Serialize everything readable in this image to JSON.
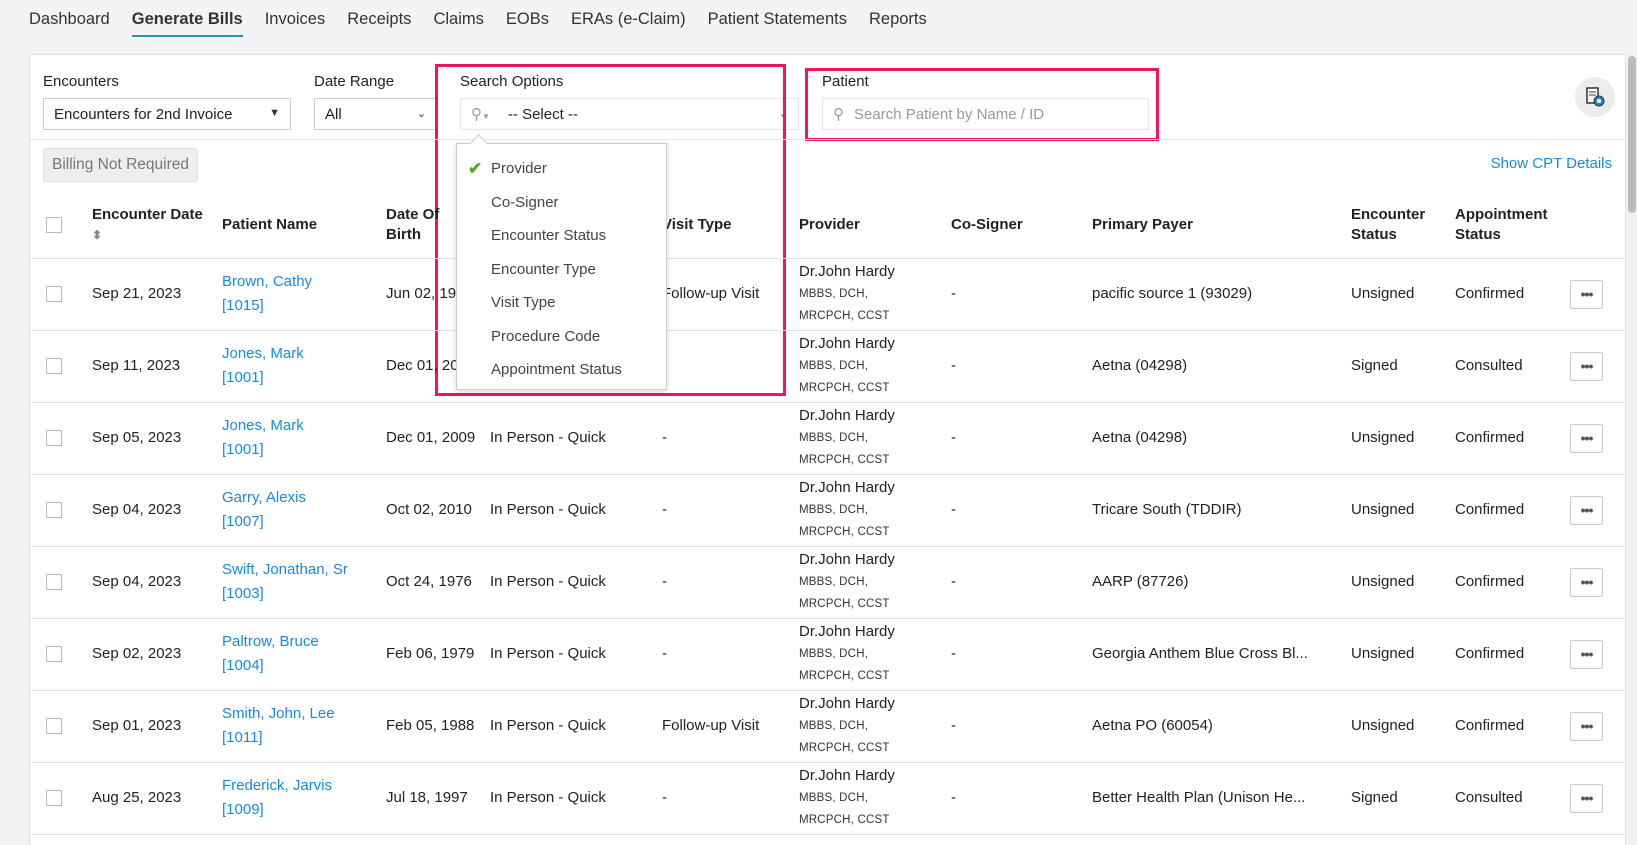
{
  "tabs": [
    "Dashboard",
    "Generate Bills",
    "Invoices",
    "Receipts",
    "Claims",
    "EOBs",
    "ERAs (e-Claim)",
    "Patient Statements",
    "Reports"
  ],
  "active_tab": "Generate Bills",
  "filters": {
    "encounters_label": "Encounters",
    "encounters_value": "Encounters for 2nd Invoice",
    "date_range_label": "Date Range",
    "date_range_value": "All",
    "search_options_label": "Search Options",
    "search_options_value": "-- Select --",
    "patient_label": "Patient",
    "patient_placeholder": "Search Patient by Name / ID"
  },
  "search_options_menu": [
    {
      "label": "Provider",
      "checked": true
    },
    {
      "label": "Co-Signer"
    },
    {
      "label": "Encounter Status"
    },
    {
      "label": "Encounter Type"
    },
    {
      "label": "Visit Type"
    },
    {
      "label": "Procedure Code"
    },
    {
      "label": "Appointment Status"
    }
  ],
  "billing_not_required_label": "Billing Not Required",
  "show_cpt_label": "Show CPT Details",
  "columns": [
    "Encounter Date",
    "Patient Name",
    "Date Of Birth",
    "",
    "Visit Type",
    "Provider",
    "Co-Signer",
    "Primary Payer",
    "Encounter Status",
    "Appointment Status"
  ],
  "rows": [
    {
      "date": "Sep 21, 2023",
      "patient": "Brown, Cathy",
      "id": "[1015]",
      "dob": "Jun 02, 1995",
      "type": "",
      "visit": "Follow-up Visit",
      "provider": "Dr.John Hardy",
      "quals": "MBBS, DCH, MRCPCH, CCST",
      "cosigner": "-",
      "payer": "pacific source 1 (93029)",
      "enc_status": "Unsigned",
      "appt_status": "Confirmed"
    },
    {
      "date": "Sep 11, 2023",
      "patient": "Jones, Mark",
      "id": "[1001]",
      "dob": "Dec 01, 2009",
      "type": "",
      "visit": "-",
      "provider": "Dr.John Hardy",
      "quals": "MBBS, DCH, MRCPCH, CCST",
      "cosigner": "-",
      "payer": "Aetna (04298)",
      "enc_status": "Signed",
      "appt_status": "Consulted"
    },
    {
      "date": "Sep 05, 2023",
      "patient": "Jones, Mark",
      "id": "[1001]",
      "dob": "Dec 01, 2009",
      "type": "In Person - Quick",
      "visit": "-",
      "provider": "Dr.John Hardy",
      "quals": "MBBS, DCH, MRCPCH, CCST",
      "cosigner": "-",
      "payer": "Aetna (04298)",
      "enc_status": "Unsigned",
      "appt_status": "Confirmed"
    },
    {
      "date": "Sep 04, 2023",
      "patient": "Garry, Alexis",
      "id": "[1007]",
      "dob": "Oct 02, 2010",
      "type": "In Person - Quick",
      "visit": "-",
      "provider": "Dr.John Hardy",
      "quals": "MBBS, DCH, MRCPCH, CCST",
      "cosigner": "-",
      "payer": "Tricare South (TDDIR)",
      "enc_status": "Unsigned",
      "appt_status": "Confirmed"
    },
    {
      "date": "Sep 04, 2023",
      "patient": "Swift, Jonathan, Sr",
      "id": "[1003]",
      "dob": "Oct 24, 1976",
      "type": "In Person - Quick",
      "visit": "-",
      "provider": "Dr.John Hardy",
      "quals": "MBBS, DCH, MRCPCH, CCST",
      "cosigner": "-",
      "payer": "AARP (87726)",
      "enc_status": "Unsigned",
      "appt_status": "Confirmed"
    },
    {
      "date": "Sep 02, 2023",
      "patient": "Paltrow, Bruce",
      "id": "[1004]",
      "dob": "Feb 06, 1979",
      "type": "In Person - Quick",
      "visit": "-",
      "provider": "Dr.John Hardy",
      "quals": "MBBS, DCH, MRCPCH, CCST",
      "cosigner": "-",
      "payer": "Georgia Anthem Blue Cross Bl...",
      "enc_status": "Unsigned",
      "appt_status": "Confirmed"
    },
    {
      "date": "Sep 01, 2023",
      "patient": "Smith, John, Lee",
      "id": "[1011]",
      "dob": "Feb 05, 1988",
      "type": "In Person - Quick",
      "visit": "Follow-up Visit",
      "provider": "Dr.John Hardy",
      "quals": "MBBS, DCH, MRCPCH, CCST",
      "cosigner": "-",
      "payer": "Aetna PO (60054)",
      "enc_status": "Unsigned",
      "appt_status": "Confirmed"
    },
    {
      "date": "Aug 25, 2023",
      "patient": "Frederick, Jarvis",
      "id": "[1009]",
      "dob": "Jul 18, 1997",
      "type": "In Person - Quick",
      "visit": "-",
      "provider": "Dr.John Hardy",
      "quals": "MBBS, DCH, MRCPCH, CCST",
      "cosigner": "-",
      "payer": "Better Health Plan (Unison He...",
      "enc_status": "Signed",
      "appt_status": "Consulted"
    }
  ],
  "colors": {
    "accent": "#1f9aa8",
    "link": "#1a8ad4",
    "highlight": "#f0145a",
    "check": "#4caf1e"
  }
}
